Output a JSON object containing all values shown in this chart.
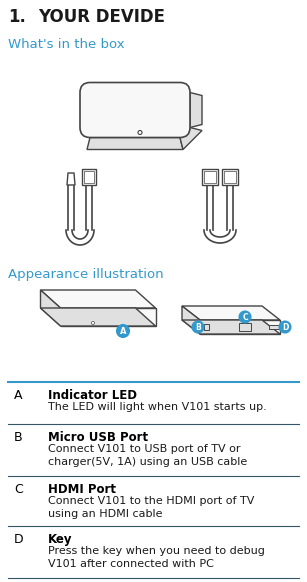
{
  "title_num": "1.",
  "title_text": "YOUR DEVIDE",
  "section1": "What's in the box",
  "section2": "Appearance illustration",
  "bg_color": "#ffffff",
  "title_color": "#1a1a1a",
  "section_color": "#3399cc",
  "table": [
    {
      "key": "A",
      "bold": "Indicator LED",
      "text": "The LED will light when V101 starts up."
    },
    {
      "key": "B",
      "bold": "Micro USB Port",
      "text": "Connect V101 to USB port of TV or\ncharger(5V, 1A) using an USB cable"
    },
    {
      "key": "C",
      "bold": "HDMI Port",
      "text": "Connect V101 to the HDMI port of TV\nusing an HDMI cable"
    },
    {
      "key": "D",
      "bold": "Key",
      "text": "Press the key when you need to debug\nV101 after connected with PC"
    }
  ],
  "line_color": "#3399cc",
  "sep_line_color": "#5588aa",
  "label_color": "#3399cc",
  "device_edge": "#444444",
  "device_face": "#f8f8f8",
  "device_side": "#e0e0e0"
}
